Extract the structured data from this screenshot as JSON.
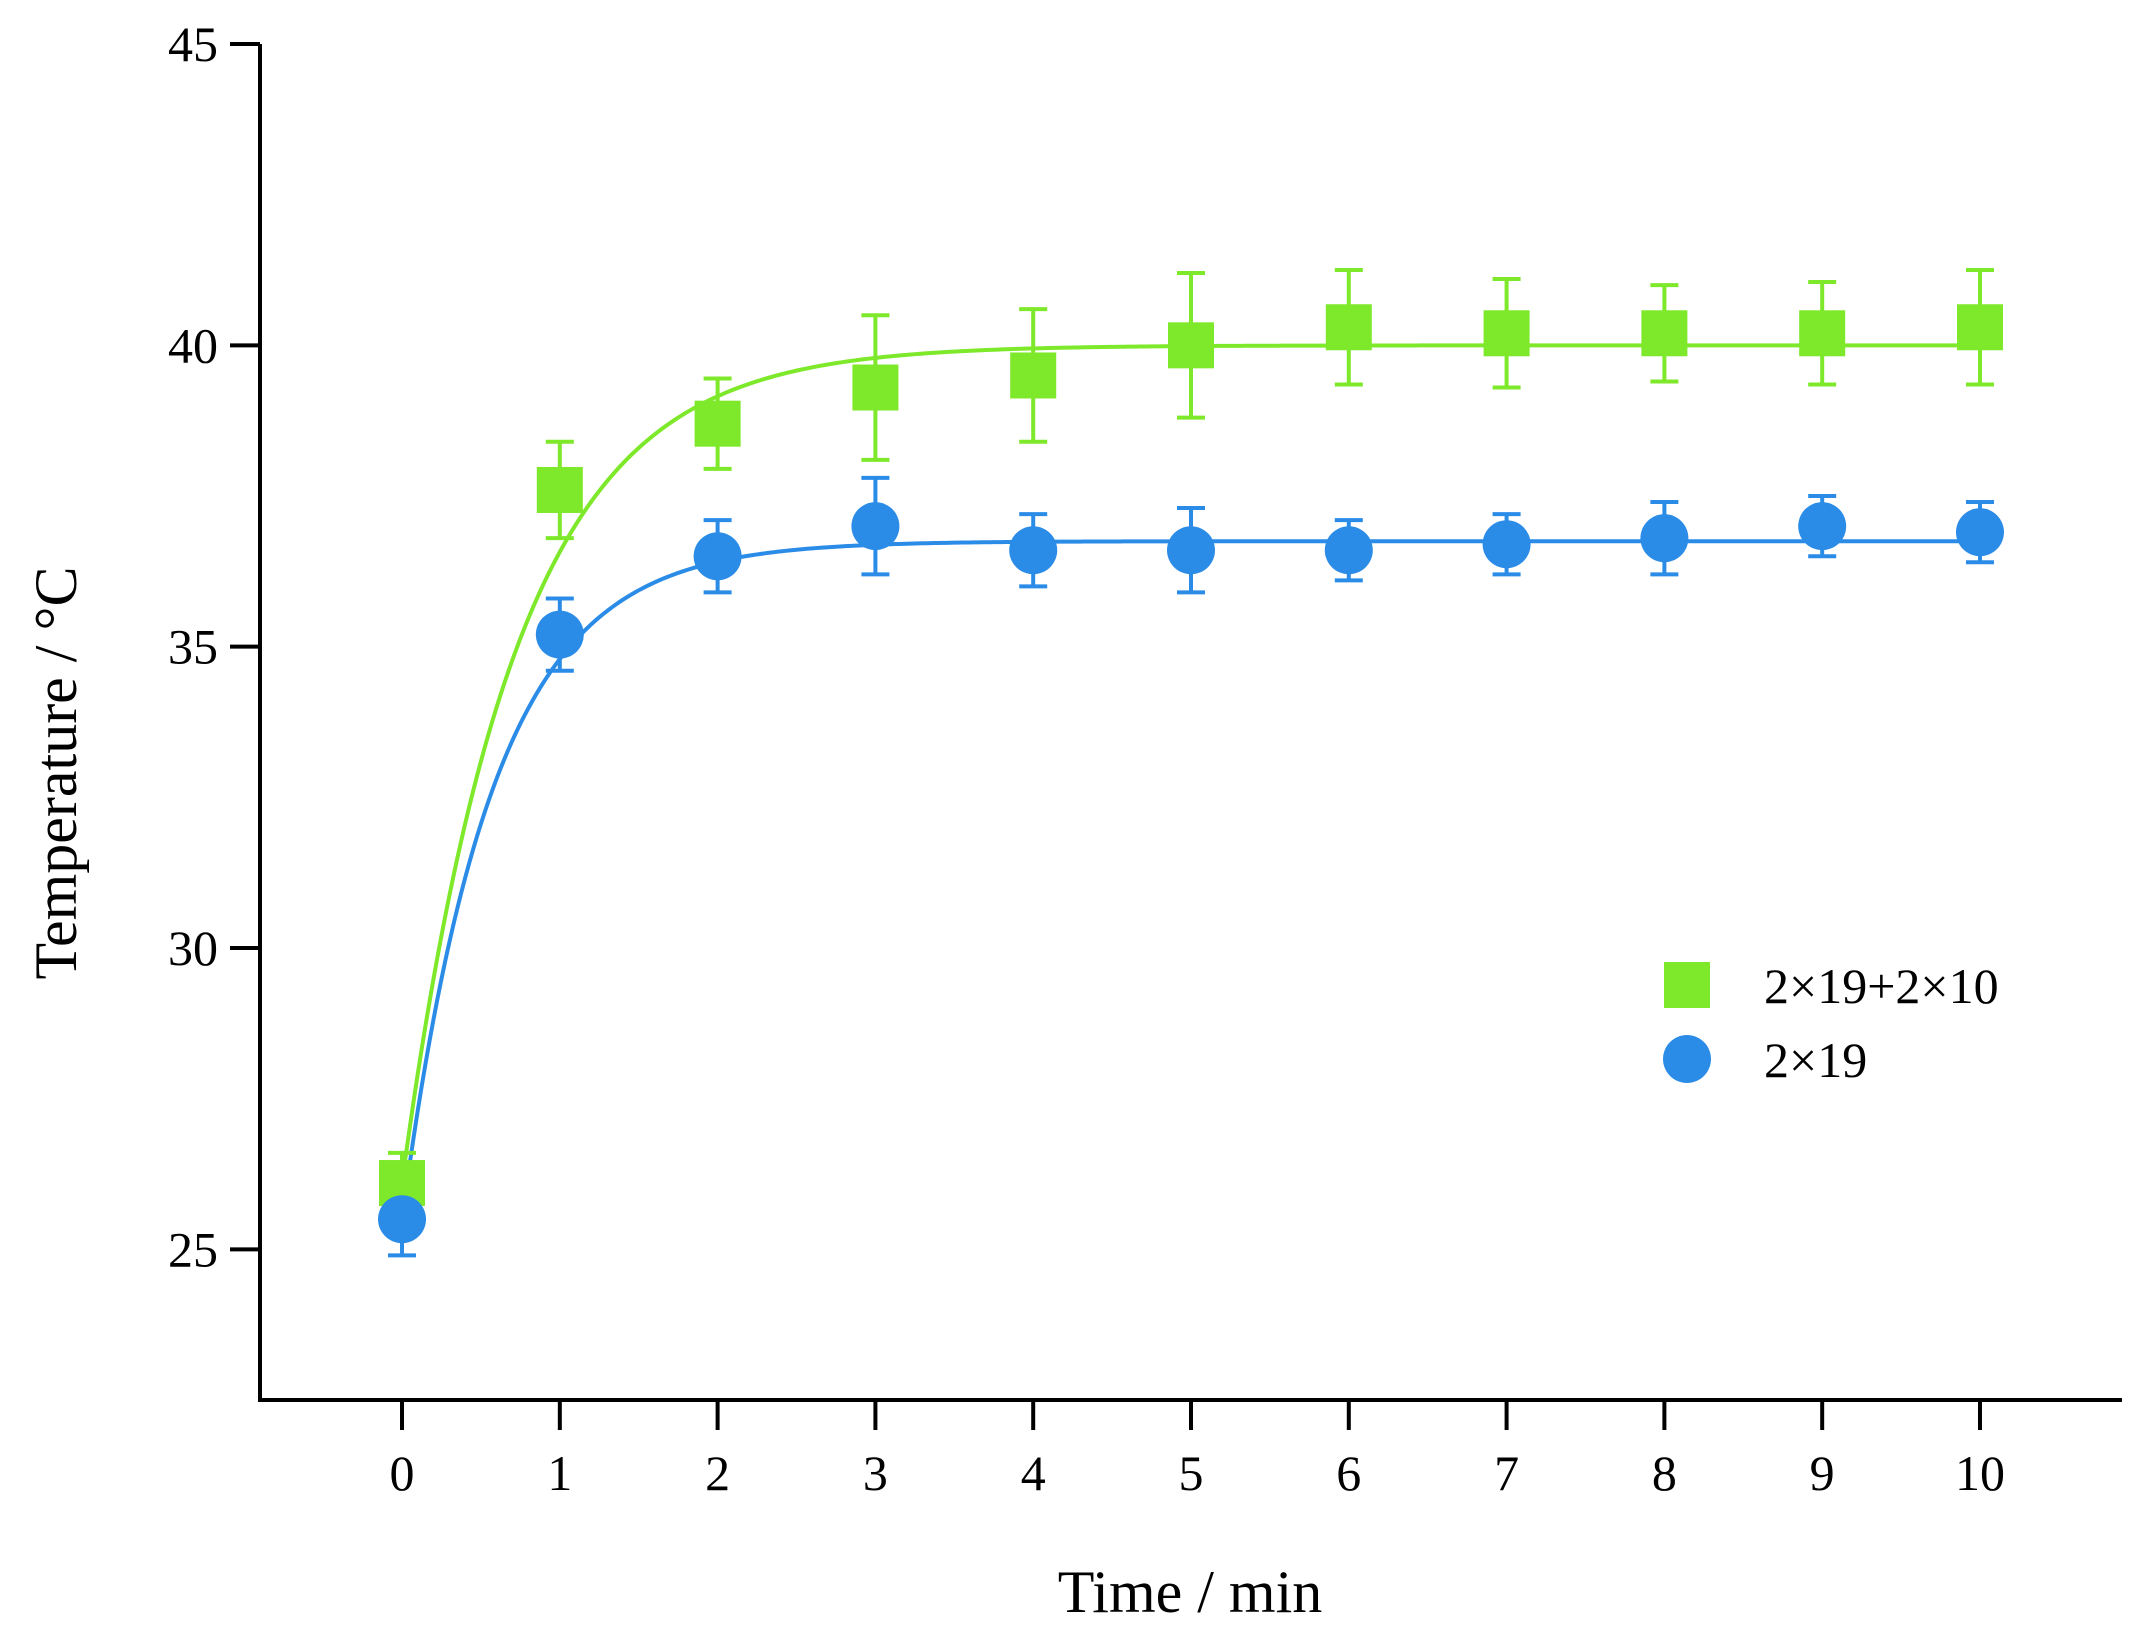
{
  "chart_data": {
    "type": "scatter",
    "title": "",
    "xlabel": "Time / min",
    "ylabel": "Temperature / °C",
    "xlim": [
      -0.9,
      10.9
    ],
    "ylim": [
      22.5,
      45
    ],
    "xticks": [
      0,
      1,
      2,
      3,
      4,
      5,
      6,
      7,
      8,
      9,
      10
    ],
    "yticks": [
      25,
      30,
      35,
      40,
      45
    ],
    "grid": false,
    "legend_position": "right",
    "series": [
      {
        "name": "2×19+2×10",
        "marker": "square",
        "color": "#7ee82a",
        "x": [
          0,
          1,
          2,
          3,
          4,
          5,
          6,
          7,
          8,
          9,
          10
        ],
        "y": [
          26.1,
          37.6,
          38.7,
          39.3,
          39.5,
          40.0,
          40.3,
          40.2,
          40.2,
          40.2,
          40.3
        ],
        "error": [
          0.5,
          0.8,
          0.75,
          1.2,
          1.1,
          1.2,
          0.95,
          0.9,
          0.8,
          0.85,
          0.95
        ],
        "fit": {
          "model": "exponential_rise",
          "start": 26.1,
          "plateau": 40.0,
          "rate": 1.4
        }
      },
      {
        "name": "2×19",
        "marker": "circle",
        "color": "#2b8ce8",
        "x": [
          0,
          1,
          2,
          3,
          4,
          5,
          6,
          7,
          8,
          9,
          10
        ],
        "y": [
          25.5,
          35.2,
          36.5,
          37.0,
          36.6,
          36.6,
          36.6,
          36.7,
          36.8,
          37.0,
          36.9
        ],
        "error": [
          0.6,
          0.6,
          0.6,
          0.8,
          0.6,
          0.7,
          0.5,
          0.5,
          0.6,
          0.5,
          0.5
        ],
        "fit": {
          "model": "exponential_rise",
          "start": 25.5,
          "plateau": 36.75,
          "rate": 1.75
        }
      }
    ]
  }
}
